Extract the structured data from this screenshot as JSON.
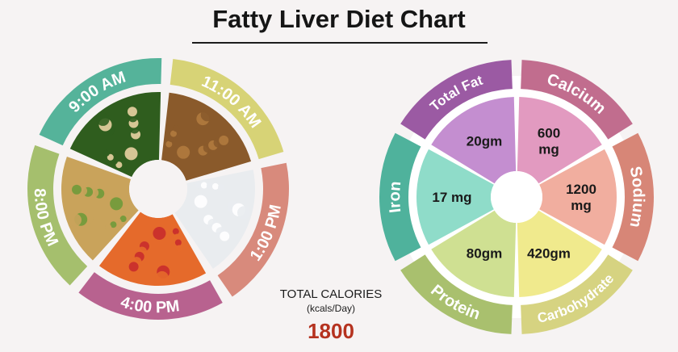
{
  "title": "Fatty Liver Diet Chart",
  "meal_times": [
    {
      "label": "11:00 AM",
      "color": "#d7d376",
      "food_icon": "chickpeas-icon"
    },
    {
      "label": "1:00 PM",
      "color": "#d88a7c",
      "food_icon": "rice-bowl-icon"
    },
    {
      "label": "4:00 PM",
      "color": "#b8628f",
      "food_icon": "fruit-bowl-icon"
    },
    {
      "label": "8:00 PM",
      "color": "#a5bf6d",
      "food_icon": "vegetable-rice-icon"
    },
    {
      "label": "9:00 AM",
      "color": "#55b39a",
      "food_icon": "flatbread-plate-icon"
    }
  ],
  "nutrients": [
    {
      "name": "Calcium",
      "value_lines": [
        "600",
        "mg"
      ],
      "ring_color": "#c16d8e",
      "wedge_color": "#e29ac0"
    },
    {
      "name": "Sodium",
      "value_lines": [
        "1200",
        "mg"
      ],
      "ring_color": "#d78677",
      "wedge_color": "#f1ae9f"
    },
    {
      "name": "Carbohydrate",
      "value_lines": [
        "420gm"
      ],
      "ring_color": "#d6d381",
      "wedge_color": "#f0ea8d"
    },
    {
      "name": "Protein",
      "value_lines": [
        "80gm"
      ],
      "ring_color": "#a9c06e",
      "wedge_color": "#cfe092"
    },
    {
      "name": "Iron",
      "value_lines": [
        "17 mg"
      ],
      "ring_color": "#4fb29c",
      "wedge_color": "#8fdcc9"
    },
    {
      "name": "Total Fat",
      "value_lines": [
        "20gm"
      ],
      "ring_color": "#9b5aa3",
      "wedge_color": "#c48ed0"
    }
  ],
  "total_calories": {
    "label": "TOTAL CALORIES",
    "unit": "(kcals/Day)",
    "value": "1800"
  }
}
